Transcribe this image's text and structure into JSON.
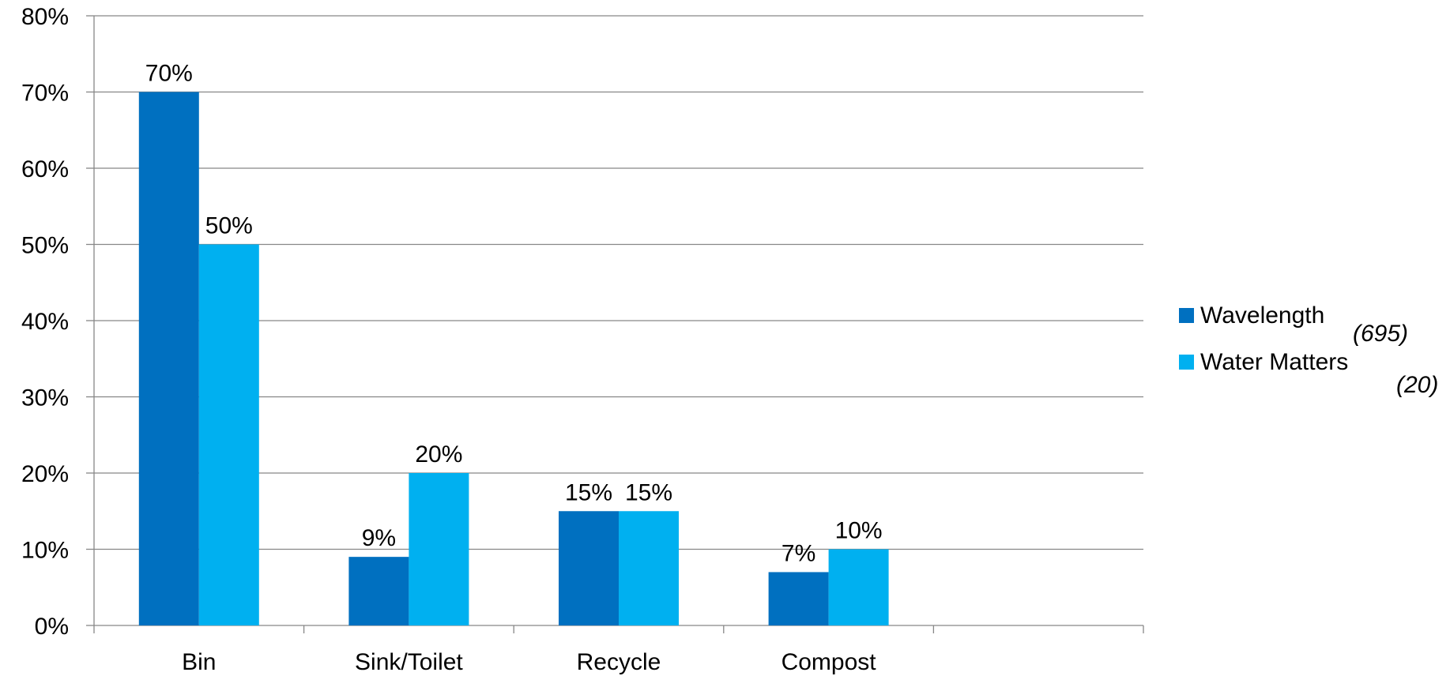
{
  "chart_data": {
    "type": "bar",
    "categories": [
      "Bin",
      "Sink/Toilet",
      "Recycle",
      "Compost",
      ""
    ],
    "series": [
      {
        "name": "Wavelength",
        "name_suffix": "(695)",
        "color": "#0070C0",
        "values": [
          70,
          9,
          15,
          7,
          null
        ]
      },
      {
        "name": "Water Matters",
        "name_suffix": "(20)",
        "color": "#00B0F0",
        "values": [
          50,
          20,
          15,
          10,
          null
        ]
      }
    ],
    "data_labels": [
      [
        "70%",
        "9%",
        "15%",
        "7%",
        ""
      ],
      [
        "50%",
        "20%",
        "15%",
        "10%",
        ""
      ]
    ],
    "y_ticks": [
      "0%",
      "10%",
      "20%",
      "30%",
      "40%",
      "50%",
      "60%",
      "70%",
      "80%"
    ],
    "ylim": [
      0,
      80
    ],
    "y_tick_step": 10,
    "unit": "%",
    "grid": true,
    "legend_position": "right",
    "title": "",
    "xlabel": "",
    "ylabel": ""
  }
}
